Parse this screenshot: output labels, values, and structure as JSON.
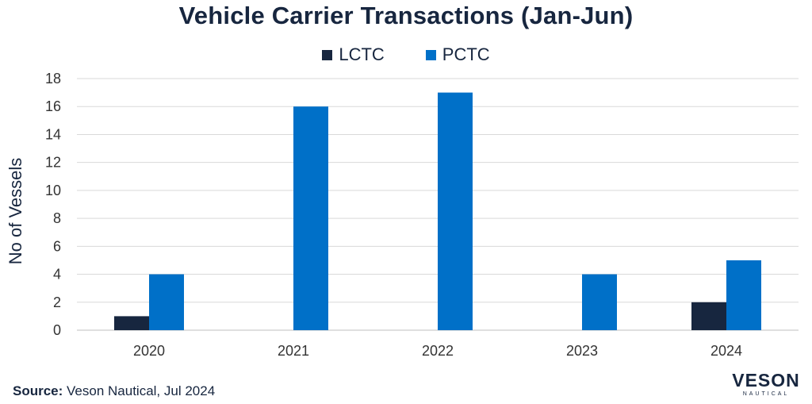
{
  "chart_data": {
    "type": "bar",
    "title": "Vehicle Carrier Transactions (Jan-Jun)",
    "categories": [
      "2020",
      "2021",
      "2022",
      "2023",
      "2024"
    ],
    "series": [
      {
        "name": "LCTC",
        "color": "#17263f",
        "values": [
          1,
          0,
          0,
          0,
          2
        ]
      },
      {
        "name": "PCTC",
        "color": "#0070c8",
        "values": [
          4,
          16,
          17,
          4,
          5
        ]
      }
    ],
    "xlabel": "",
    "ylabel": "No of Vessels",
    "ylim": [
      0,
      18
    ],
    "yticks": [
      0,
      2,
      4,
      6,
      8,
      10,
      12,
      14,
      16,
      18
    ],
    "grid": true,
    "legend_position": "top-center"
  },
  "footer": {
    "source_label": "Source:",
    "source_text": "Veson Nautical, Jul 2024"
  },
  "logo": {
    "brand": "VESON",
    "tagline": "NAUTICAL"
  }
}
